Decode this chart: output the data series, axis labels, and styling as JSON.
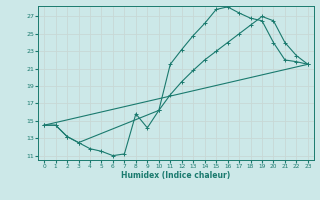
{
  "xlabel": "Humidex (Indice chaleur)",
  "ylabel": "",
  "bg_color": "#cce8e8",
  "grid_color": "#b8d8d8",
  "line_color": "#1a7a6e",
  "xlim": [
    -0.5,
    23.5
  ],
  "ylim": [
    10.5,
    28.2
  ],
  "xticks": [
    0,
    1,
    2,
    3,
    4,
    5,
    6,
    7,
    8,
    9,
    10,
    11,
    12,
    13,
    14,
    15,
    16,
    17,
    18,
    19,
    20,
    21,
    22,
    23
  ],
  "yticks": [
    11,
    13,
    15,
    17,
    19,
    21,
    23,
    25,
    27
  ],
  "line1_x": [
    0,
    1,
    2,
    3,
    4,
    5,
    6,
    7,
    8,
    9,
    10,
    11,
    12,
    13,
    14,
    15,
    16,
    17,
    18,
    19,
    20,
    21,
    22,
    23
  ],
  "line1_y": [
    14.5,
    14.5,
    13.2,
    12.5,
    11.8,
    11.5,
    11.0,
    11.2,
    15.8,
    14.2,
    16.2,
    21.5,
    23.2,
    24.8,
    26.2,
    27.8,
    28.1,
    27.4,
    26.8,
    26.5,
    24.0,
    22.0,
    21.8,
    21.5
  ],
  "line2_x": [
    0,
    1,
    2,
    3,
    10,
    11,
    12,
    13,
    14,
    15,
    16,
    17,
    18,
    19,
    20,
    21,
    22,
    23
  ],
  "line2_y": [
    14.5,
    14.5,
    13.2,
    12.5,
    16.2,
    18.0,
    19.5,
    20.8,
    22.0,
    23.0,
    24.0,
    25.0,
    26.0,
    27.0,
    26.5,
    24.0,
    22.5,
    21.5
  ],
  "line3_x": [
    0,
    23
  ],
  "line3_y": [
    14.5,
    21.5
  ]
}
